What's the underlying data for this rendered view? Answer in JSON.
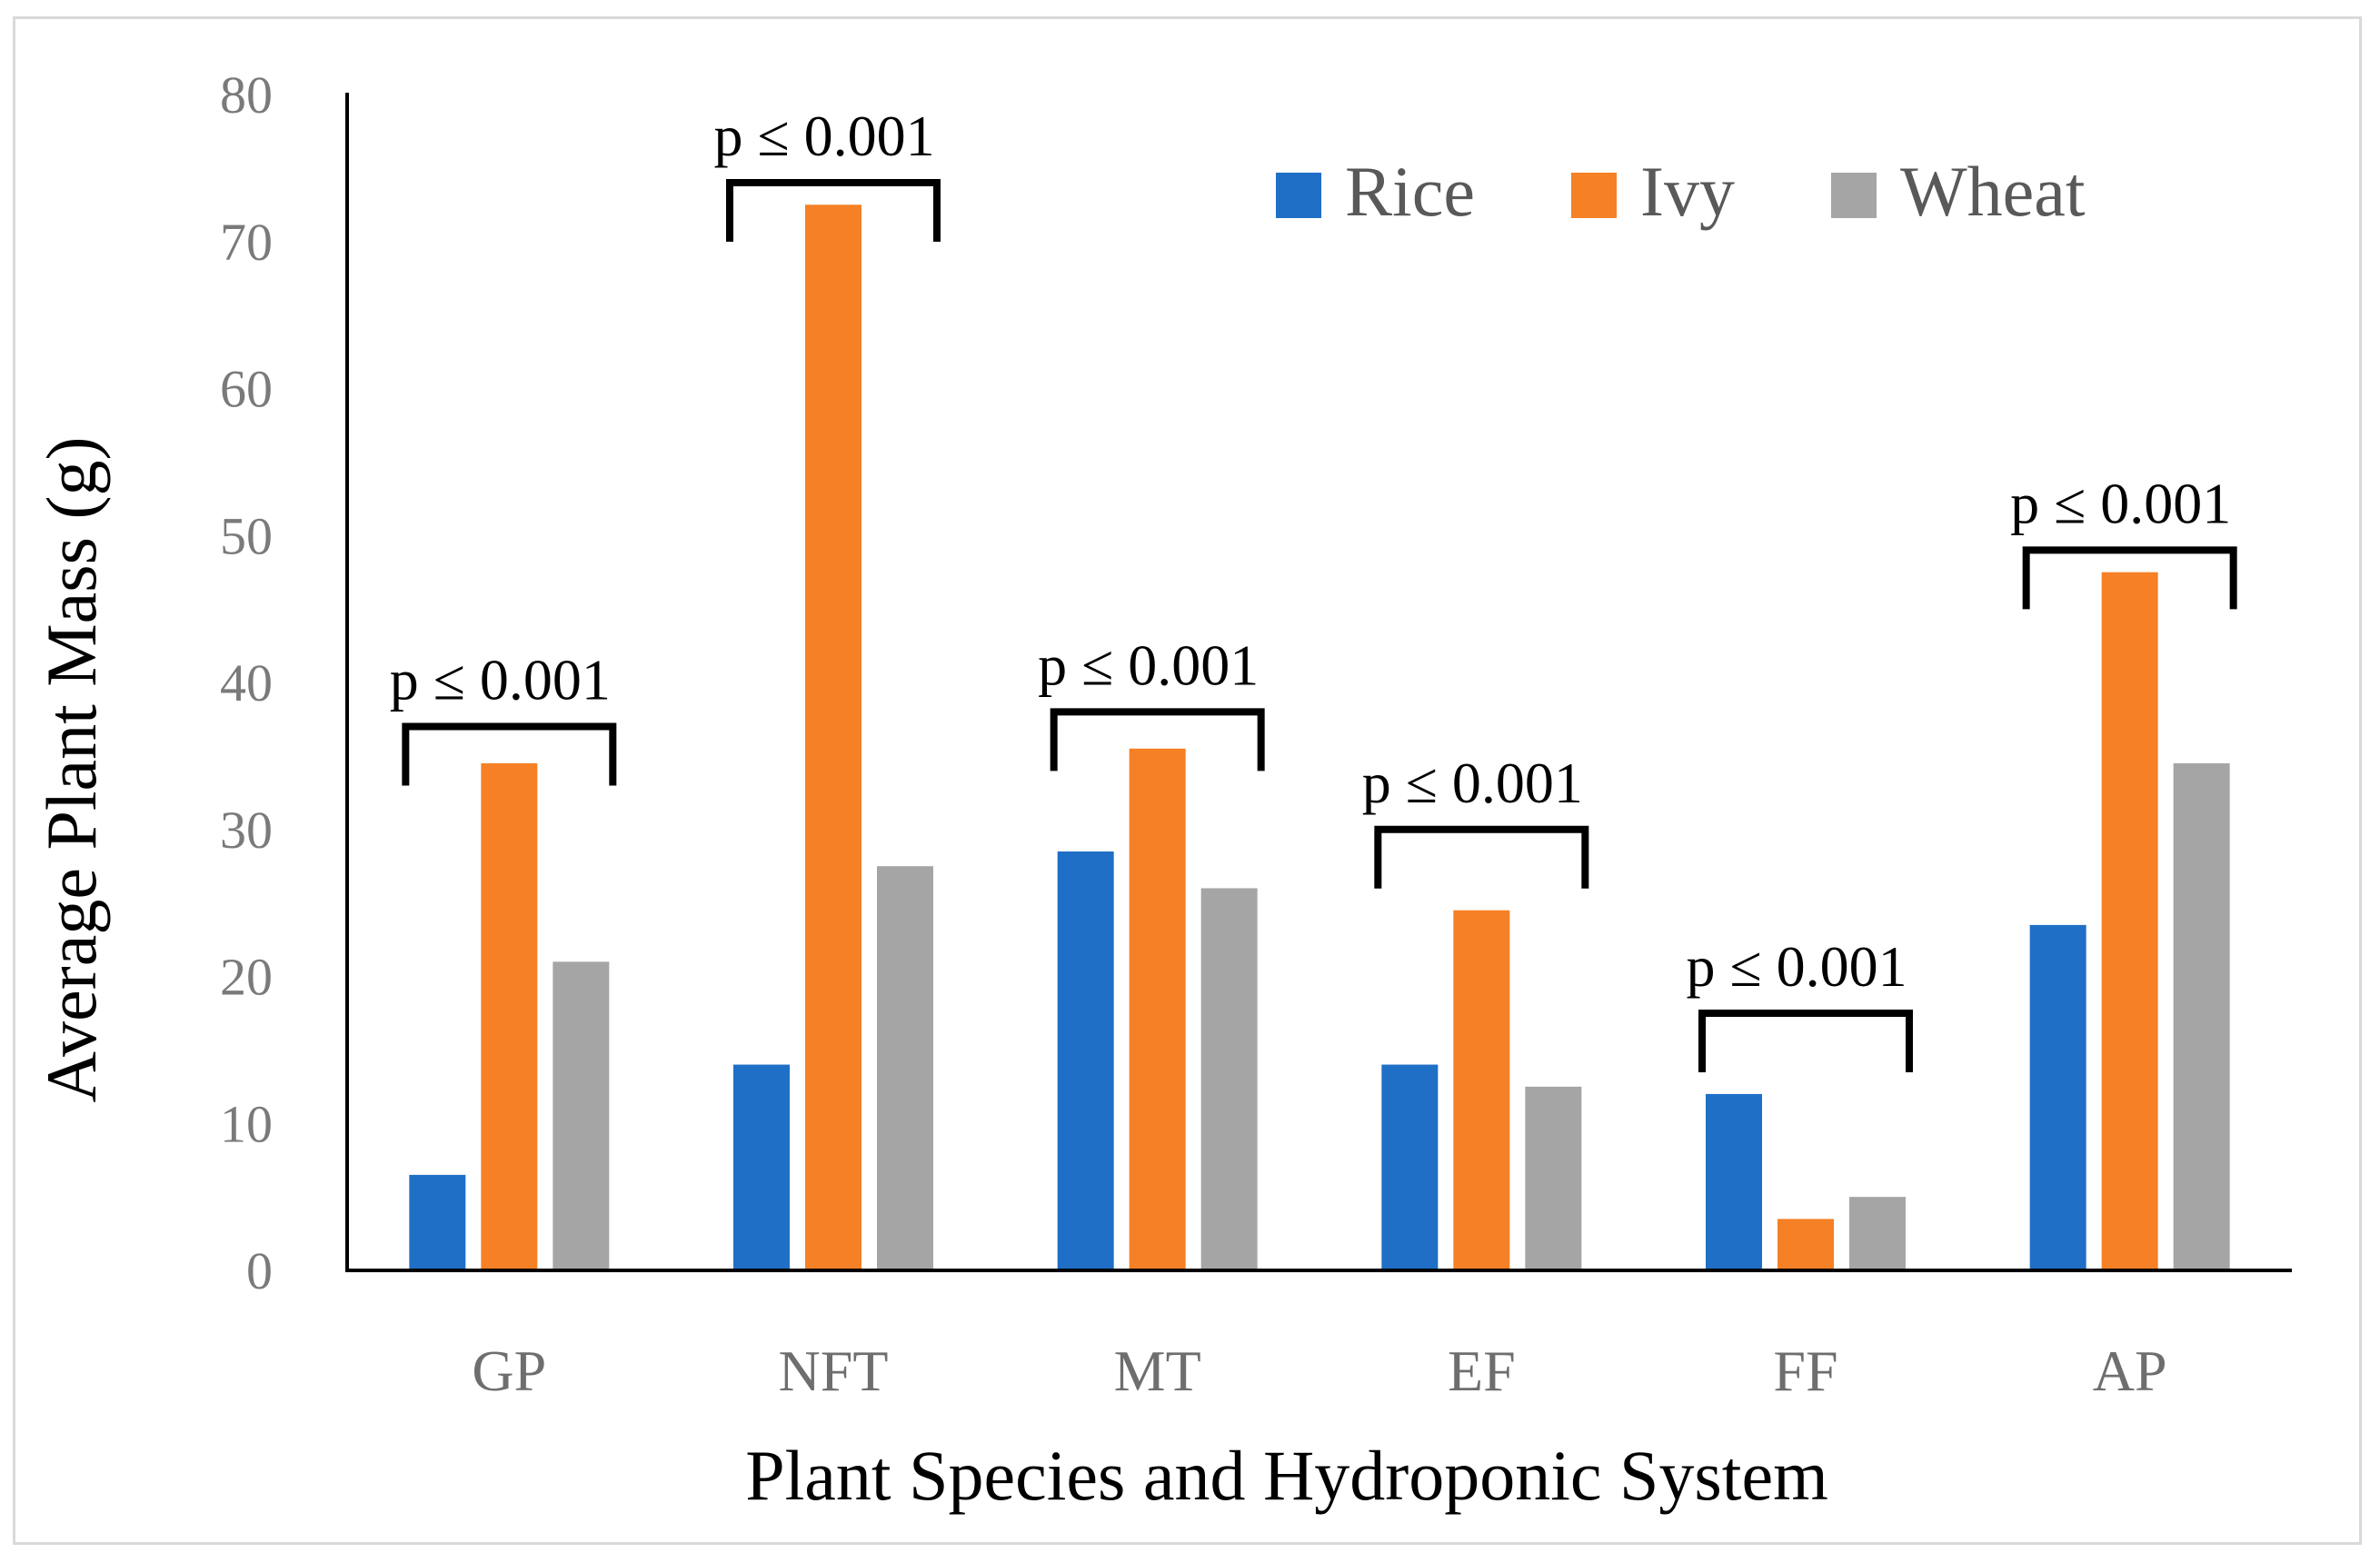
{
  "chart_data": {
    "type": "bar",
    "title": "",
    "xlabel": "Plant Species and Hydroponic System",
    "ylabel": "Average Plant Mass (g)",
    "ylim": [
      0,
      80
    ],
    "yticks": [
      0,
      10,
      20,
      30,
      40,
      50,
      60,
      70,
      80
    ],
    "grid": false,
    "legend_position": "top-right",
    "categories": [
      "GP",
      "NFT",
      "MT",
      "EF",
      "FF",
      "AP"
    ],
    "series": [
      {
        "name": "Rice",
        "color": "#1f6fc6",
        "values": [
          6.5,
          14,
          28.5,
          14,
          12,
          23.5
        ]
      },
      {
        "name": "Ivy",
        "color": "#f58025",
        "values": [
          34.5,
          72.5,
          35.5,
          24.5,
          3.5,
          47.5
        ]
      },
      {
        "name": "Wheat",
        "color": "#a5a5a5",
        "values": [
          21,
          27.5,
          26,
          12.5,
          5,
          34.5
        ]
      }
    ],
    "annotations": [
      {
        "category": "GP",
        "text": "p ≤ 0.001",
        "bracket_level": 37
      },
      {
        "category": "NFT",
        "text": "p ≤ 0.001",
        "bracket_level": 74
      },
      {
        "category": "MT",
        "text": "p ≤ 0.001",
        "bracket_level": 38
      },
      {
        "category": "EF",
        "text": "p ≤ 0.001",
        "bracket_level": 30
      },
      {
        "category": "FF",
        "text": "p ≤ 0.001",
        "bracket_level": 17.5
      },
      {
        "category": "AP",
        "text": "p ≤ 0.001",
        "bracket_level": 49
      }
    ]
  }
}
